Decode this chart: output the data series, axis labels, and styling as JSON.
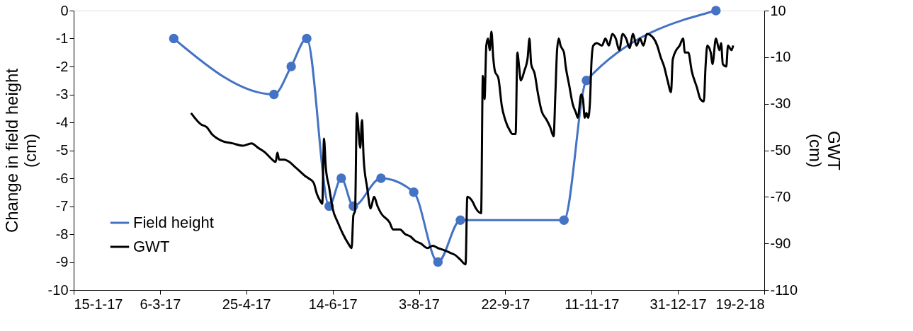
{
  "chart_data": {
    "type": "line",
    "ylabel": "Change in field height (cm)",
    "y2label": "GWT (cm)",
    "xlim": [
      "2017-01-15",
      "2018-02-19"
    ],
    "xticks": [
      {
        "value": "2017-01-15",
        "label": "15-1-17"
      },
      {
        "value": "2017-03-06",
        "label": "6-3-17"
      },
      {
        "value": "2017-04-25",
        "label": "25-4-17"
      },
      {
        "value": "2017-06-14",
        "label": "14-6-17"
      },
      {
        "value": "2017-08-03",
        "label": "3-8-17"
      },
      {
        "value": "2017-09-22",
        "label": "22-9-17"
      },
      {
        "value": "2017-11-11",
        "label": "11-11-17"
      },
      {
        "value": "2017-12-31",
        "label": "31-12-17"
      },
      {
        "value": "2018-02-19",
        "label": "19-2-18"
      }
    ],
    "ylim": [
      -10,
      0
    ],
    "yticks": [
      -10,
      -9,
      -8,
      -7,
      -6,
      -5,
      -4,
      -3,
      -2,
      -1,
      0
    ],
    "y2lim": [
      -110,
      10
    ],
    "y2ticks": [
      -110,
      -90,
      -70,
      -50,
      -30,
      -10,
      10
    ],
    "grid": false,
    "legend": "bottom left",
    "series": [
      {
        "name": "Field height",
        "color": "#4472c4",
        "marker": "circle",
        "x": [
          "2017-03-14",
          "2017-05-11",
          "2017-05-21",
          "2017-05-30",
          "2017-06-12",
          "2017-06-19",
          "2017-06-26",
          "2017-07-12",
          "2017-07-31",
          "2017-08-14",
          "2017-08-27",
          "2017-10-26",
          "2017-11-08",
          "2018-01-22"
        ],
        "values": [
          -1,
          -3,
          -2,
          -1,
          -7,
          -6,
          -7,
          -6,
          -6.5,
          -9,
          -7.5,
          -7.5,
          -2.5,
          0
        ]
      },
      {
        "name": "GWT",
        "color": "#000000",
        "marker": "none",
        "axis": "y2",
        "x": [
          "2017-03-24",
          "2017-03-30",
          "2017-04-02",
          "2017-04-05",
          "2017-04-11",
          "2017-04-17",
          "2017-04-23",
          "2017-04-28",
          "2017-05-02",
          "2017-05-06",
          "2017-05-10",
          "2017-05-12",
          "2017-05-13",
          "2017-05-14",
          "2017-05-17",
          "2017-05-20",
          "2017-05-23",
          "2017-05-26",
          "2017-05-29",
          "2017-05-31",
          "2017-06-03",
          "2017-06-05",
          "2017-06-07",
          "2017-06-08",
          "2017-06-09",
          "2017-06-10",
          "2017-06-12",
          "2017-06-14",
          "2017-06-17",
          "2017-06-20",
          "2017-06-23",
          "2017-06-25",
          "2017-06-26",
          "2017-06-27",
          "2017-06-28",
          "2017-06-30",
          "2017-07-01",
          "2017-07-02",
          "2017-07-04",
          "2017-07-06",
          "2017-07-08",
          "2017-07-10",
          "2017-07-12",
          "2017-07-17",
          "2017-07-19",
          "2017-07-23",
          "2017-07-26",
          "2017-07-29",
          "2017-08-01",
          "2017-08-04",
          "2017-08-08",
          "2017-08-11",
          "2017-08-14",
          "2017-08-18",
          "2017-08-21",
          "2017-08-24",
          "2017-08-27",
          "2017-08-30",
          "2017-08-31",
          "2017-09-03",
          "2017-09-05",
          "2017-09-08",
          "2017-09-09",
          "2017-09-10",
          "2017-09-11",
          "2017-09-12",
          "2017-09-13",
          "2017-09-14",
          "2017-09-15",
          "2017-09-16",
          "2017-09-18",
          "2017-09-20",
          "2017-09-22",
          "2017-09-25",
          "2017-09-26",
          "2017-09-28",
          "2017-09-29",
          "2017-09-30",
          "2017-10-01",
          "2017-10-03",
          "2017-10-05",
          "2017-10-06",
          "2017-10-07",
          "2017-10-09",
          "2017-10-11",
          "2017-10-13",
          "2017-10-16",
          "2017-10-18",
          "2017-10-20",
          "2017-10-21",
          "2017-10-22",
          "2017-10-23",
          "2017-10-24",
          "2017-10-26",
          "2017-10-27",
          "2017-10-29",
          "2017-10-31",
          "2017-11-02",
          "2017-11-03",
          "2017-11-05",
          "2017-11-06",
          "2017-11-07",
          "2017-11-08",
          "2017-11-09",
          "2017-11-10",
          "2017-11-11",
          "2017-11-12",
          "2017-11-14",
          "2017-11-17",
          "2017-11-19",
          "2017-11-21",
          "2017-11-23",
          "2017-11-25",
          "2017-11-27",
          "2017-11-29",
          "2017-12-01",
          "2017-12-03",
          "2017-12-05",
          "2017-12-07",
          "2017-12-09",
          "2017-12-11",
          "2017-12-13",
          "2017-12-17",
          "2017-12-19",
          "2017-12-21",
          "2017-12-23",
          "2017-12-25",
          "2017-12-27",
          "2017-12-28",
          "2017-12-30",
          "2018-01-01",
          "2018-01-03",
          "2018-01-04",
          "2018-01-06",
          "2018-01-08",
          "2018-01-11",
          "2018-01-13",
          "2018-01-15",
          "2018-01-16",
          "2018-01-17",
          "2018-01-19",
          "2018-01-20",
          "2018-01-22",
          "2018-01-24",
          "2018-01-25",
          "2018-01-26",
          "2018-01-28",
          "2018-01-29",
          "2018-01-31",
          "2018-02-01"
        ],
        "values": [
          -34,
          -39,
          -40,
          -43,
          -46,
          -47,
          -48,
          -47,
          -49,
          -51,
          -54,
          -55,
          -51,
          -54,
          -54,
          -55,
          -57,
          -59,
          -61,
          -62,
          -64,
          -69,
          -72,
          -73,
          -45,
          -57,
          -66,
          -75,
          -81,
          -86,
          -90,
          -92,
          -78,
          -76,
          -34,
          -49,
          -37,
          -54,
          -66,
          -75,
          -70,
          -74,
          -77,
          -81,
          -84,
          -84,
          -86,
          -87,
          -89,
          -90,
          -92,
          -91,
          -92,
          -93,
          -94,
          -95,
          -97,
          -99,
          -70,
          -72,
          -75,
          -77,
          -18,
          -28,
          -5,
          -2,
          -7,
          1,
          -10,
          -16,
          -19,
          -31,
          -37,
          -42,
          -43,
          -43,
          -8,
          -14,
          -20,
          -16,
          -10,
          -2,
          -13,
          -17,
          -26,
          -33,
          -37,
          -40,
          -44,
          -26,
          -7,
          -2,
          -5,
          -8,
          -14,
          -22,
          -30,
          -34,
          -36,
          -26,
          -28,
          -36,
          -34,
          -36,
          -30,
          -11,
          -5,
          -4,
          -5,
          -2,
          -5,
          0,
          -2,
          -7,
          0,
          -2,
          -6,
          0,
          -5,
          -2,
          -5,
          0,
          -2,
          -5,
          -10,
          -14,
          -20,
          -25,
          -11,
          -7,
          -5,
          -2,
          -8,
          -8,
          -16,
          -23,
          -28,
          -29,
          -14,
          -5,
          -8,
          -13,
          -2,
          -7,
          -4,
          -13,
          -14,
          -5,
          -7,
          -5
        ]
      }
    ]
  }
}
